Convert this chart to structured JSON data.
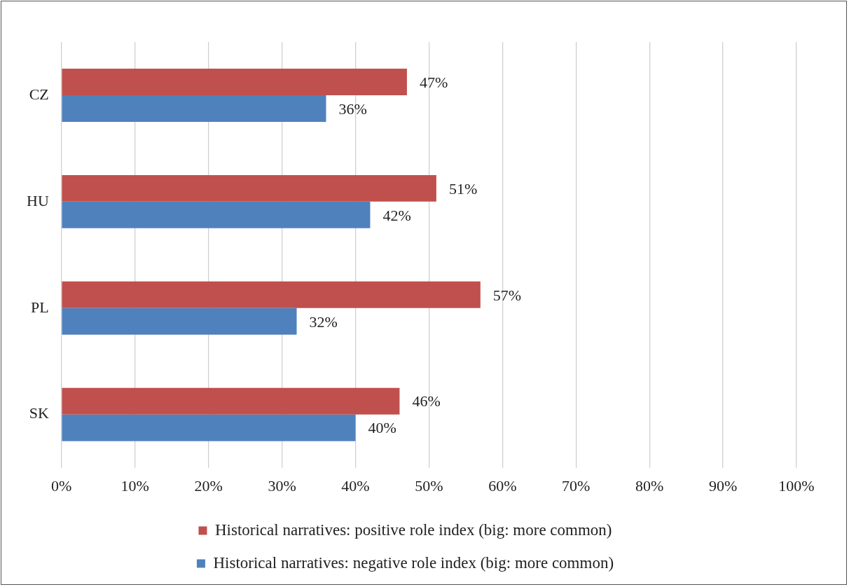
{
  "chart_data": {
    "type": "bar",
    "orientation": "horizontal",
    "categories": [
      "CZ",
      "HU",
      "PL",
      "SK"
    ],
    "series": [
      {
        "name": "Historical narratives: positive role index (big: more common)",
        "color": "#c0504d",
        "values": [
          47,
          51,
          57,
          46
        ],
        "value_labels": [
          "47%",
          "51%",
          "57%",
          "46%"
        ]
      },
      {
        "name": "Historical narratives: negative role index (big: more common)",
        "color": "#4f81bd",
        "values": [
          36,
          42,
          32,
          40
        ],
        "value_labels": [
          "36%",
          "42%",
          "32%",
          "40%"
        ]
      }
    ],
    "xlim": [
      0,
      100
    ],
    "xticks": [
      {
        "value": 0,
        "label": "0%"
      },
      {
        "value": 10,
        "label": "10%"
      },
      {
        "value": 20,
        "label": "20%"
      },
      {
        "value": 30,
        "label": "30%"
      },
      {
        "value": 40,
        "label": "40%"
      },
      {
        "value": 50,
        "label": "50%"
      },
      {
        "value": 60,
        "label": "60%"
      },
      {
        "value": 70,
        "label": "70%"
      },
      {
        "value": 80,
        "label": "80%"
      },
      {
        "value": 90,
        "label": "90%"
      },
      {
        "value": 100,
        "label": "100%"
      }
    ],
    "grid": "x",
    "legend": "bottom"
  }
}
